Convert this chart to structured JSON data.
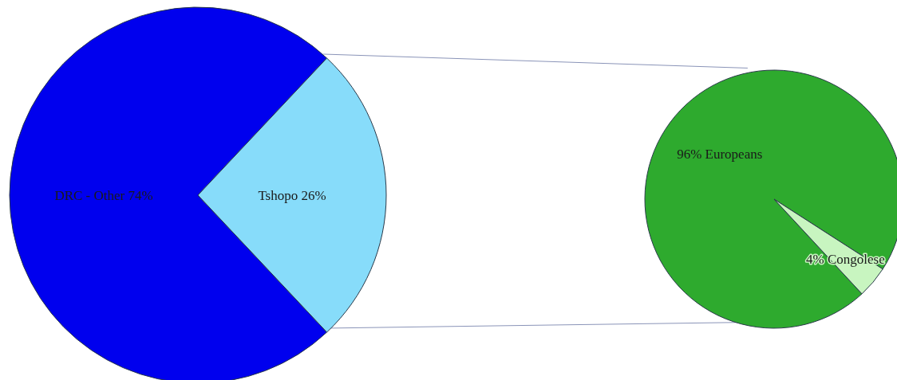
{
  "chart_data": [
    {
      "type": "pie",
      "categories": [
        "DRC - Other",
        "Tshopo"
      ],
      "values": [
        74,
        26
      ],
      "colors": [
        "#0000ee",
        "#87dcfa"
      ],
      "value_labels": [
        "74%",
        "26%"
      ]
    },
    {
      "type": "pie",
      "categories": [
        "Europeans",
        "Congolese"
      ],
      "values": [
        96,
        4
      ],
      "colors": [
        "#2eaa2e",
        "#c8f5c0"
      ],
      "value_labels": [
        "96%",
        "4%"
      ]
    }
  ]
}
